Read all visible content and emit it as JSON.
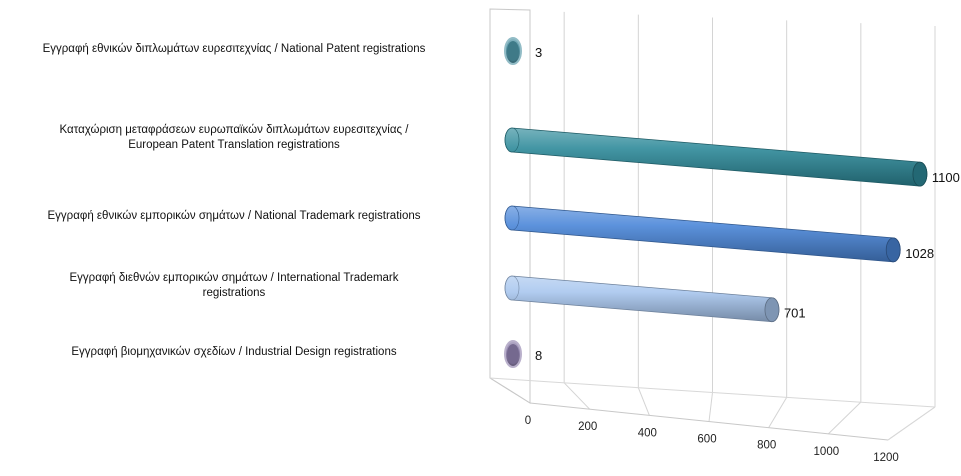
{
  "chart_data": {
    "type": "bar",
    "orientation": "horizontal",
    "style": "3d-cylinder",
    "title": "",
    "xlabel": "",
    "ylabel": "",
    "xlim": [
      0,
      1200
    ],
    "ticks": [
      "0",
      "200",
      "400",
      "600",
      "800",
      "1000",
      "1200"
    ],
    "categories": [
      {
        "line1": "Εγγραφή  εθνικών διπλωμάτων ευρεσιτεχνίας / National Patent registrations",
        "line2": ""
      },
      {
        "line1": "Καταχώριση μεταφράσεων ευρωπαϊκών διπλωμάτων ευρεσιτεχνίας /",
        "line2": "European Patent Translation registrations"
      },
      {
        "line1": "Εγγραφή  εθνικών εμπορικών σημάτων / National Trademark registrations",
        "line2": ""
      },
      {
        "line1": "Εγγραφή  διεθνών εμπορικών σημάτων / International Trademark",
        "line2": "registrations"
      },
      {
        "line1": "Εγγραφή  βιομηχανικών σχεδίων / Industrial Design registrations",
        "line2": ""
      }
    ],
    "values": [
      3,
      1100,
      1028,
      701,
      8
    ],
    "value_labels": [
      "3",
      "1100",
      "1028",
      "701",
      "8"
    ],
    "colors": [
      "#4a8fa0",
      "#2e8a9a",
      "#4a86d8",
      "#a8c6ee",
      "#8a7ca8"
    ],
    "grid": true,
    "legend": "none"
  }
}
